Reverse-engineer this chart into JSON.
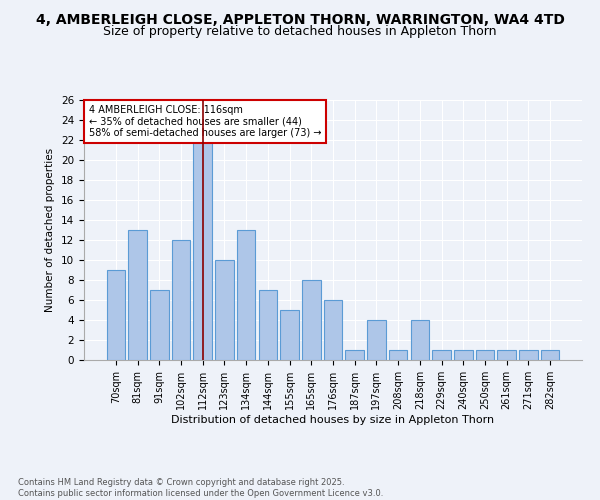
{
  "title_line1": "4, AMBERLEIGH CLOSE, APPLETON THORN, WARRINGTON, WA4 4TD",
  "title_line2": "Size of property relative to detached houses in Appleton Thorn",
  "xlabel": "Distribution of detached houses by size in Appleton Thorn",
  "ylabel": "Number of detached properties",
  "categories": [
    "70sqm",
    "81sqm",
    "91sqm",
    "102sqm",
    "112sqm",
    "123sqm",
    "134sqm",
    "144sqm",
    "155sqm",
    "165sqm",
    "176sqm",
    "187sqm",
    "197sqm",
    "208sqm",
    "218sqm",
    "229sqm",
    "240sqm",
    "250sqm",
    "261sqm",
    "271sqm",
    "282sqm"
  ],
  "values": [
    9,
    13,
    7,
    12,
    22,
    10,
    13,
    7,
    5,
    8,
    6,
    1,
    4,
    1,
    4,
    1,
    1,
    1,
    1,
    1,
    1
  ],
  "bar_color": "#aec6e8",
  "bar_edge_color": "#5b9bd5",
  "highlight_index": 4,
  "highlight_line_color": "#8b0000",
  "annotation_text": "4 AMBERLEIGH CLOSE: 116sqm\n← 35% of detached houses are smaller (44)\n58% of semi-detached houses are larger (73) →",
  "annotation_box_color": "#ffffff",
  "annotation_box_edge_color": "#cc0000",
  "ylim": [
    0,
    26
  ],
  "yticks": [
    0,
    2,
    4,
    6,
    8,
    10,
    12,
    14,
    16,
    18,
    20,
    22,
    24,
    26
  ],
  "footer_text": "Contains HM Land Registry data © Crown copyright and database right 2025.\nContains public sector information licensed under the Open Government Licence v3.0.",
  "bg_color": "#eef2f9",
  "title_fontsize": 10,
  "subtitle_fontsize": 9
}
